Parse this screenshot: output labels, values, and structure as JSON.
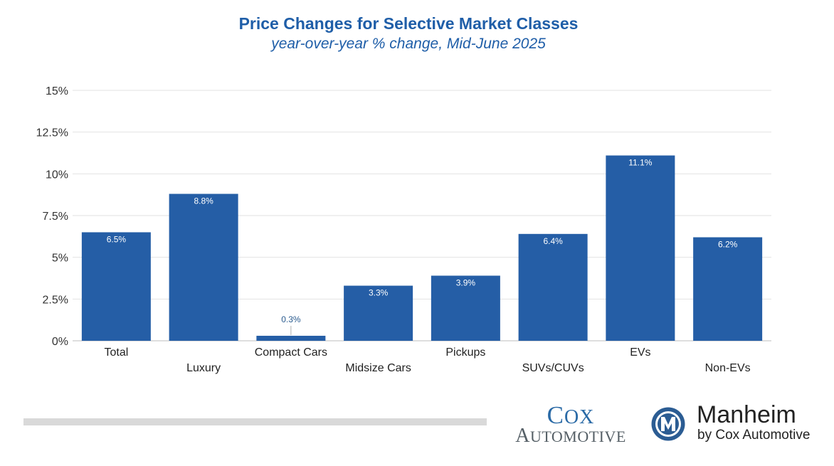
{
  "chart_data": {
    "type": "bar",
    "title": "Price Changes for Selective Market Classes",
    "subtitle": "year-over-year % change, Mid-June 2025",
    "categories": [
      "Total",
      "Luxury",
      "Compact Cars",
      "Midsize Cars",
      "Pickups",
      "SUVs/CUVs",
      "EVs",
      "Non-EVs"
    ],
    "values": [
      6.5,
      8.8,
      0.3,
      3.3,
      3.9,
      6.4,
      11.1,
      6.2
    ],
    "data_labels": [
      "6.5%",
      "8.8%",
      "0.3%",
      "3.3%",
      "3.9%",
      "6.4%",
      "11.1%",
      "6.2%"
    ],
    "ylim": [
      0,
      15
    ],
    "yticks": [
      0,
      2.5,
      5,
      7.5,
      10,
      12.5,
      15
    ],
    "ytick_labels": [
      "0%",
      "2.5%",
      "5%",
      "7.5%",
      "10%",
      "12.5%",
      "15%"
    ],
    "xlabel": "",
    "ylabel": "",
    "grid": true,
    "bar_color": "#255ea6"
  },
  "branding": {
    "cox_line1": "Cox",
    "cox_line2": "Automotive",
    "manheim_name": "Manheim",
    "manheim_sub": "by Cox Automotive"
  },
  "colors": {
    "title": "#1f5ea8",
    "grid": "#e2e2e2",
    "axis_text": "#333333",
    "label_text": "#ffffff",
    "small_label_text": "#2a5b8f"
  }
}
